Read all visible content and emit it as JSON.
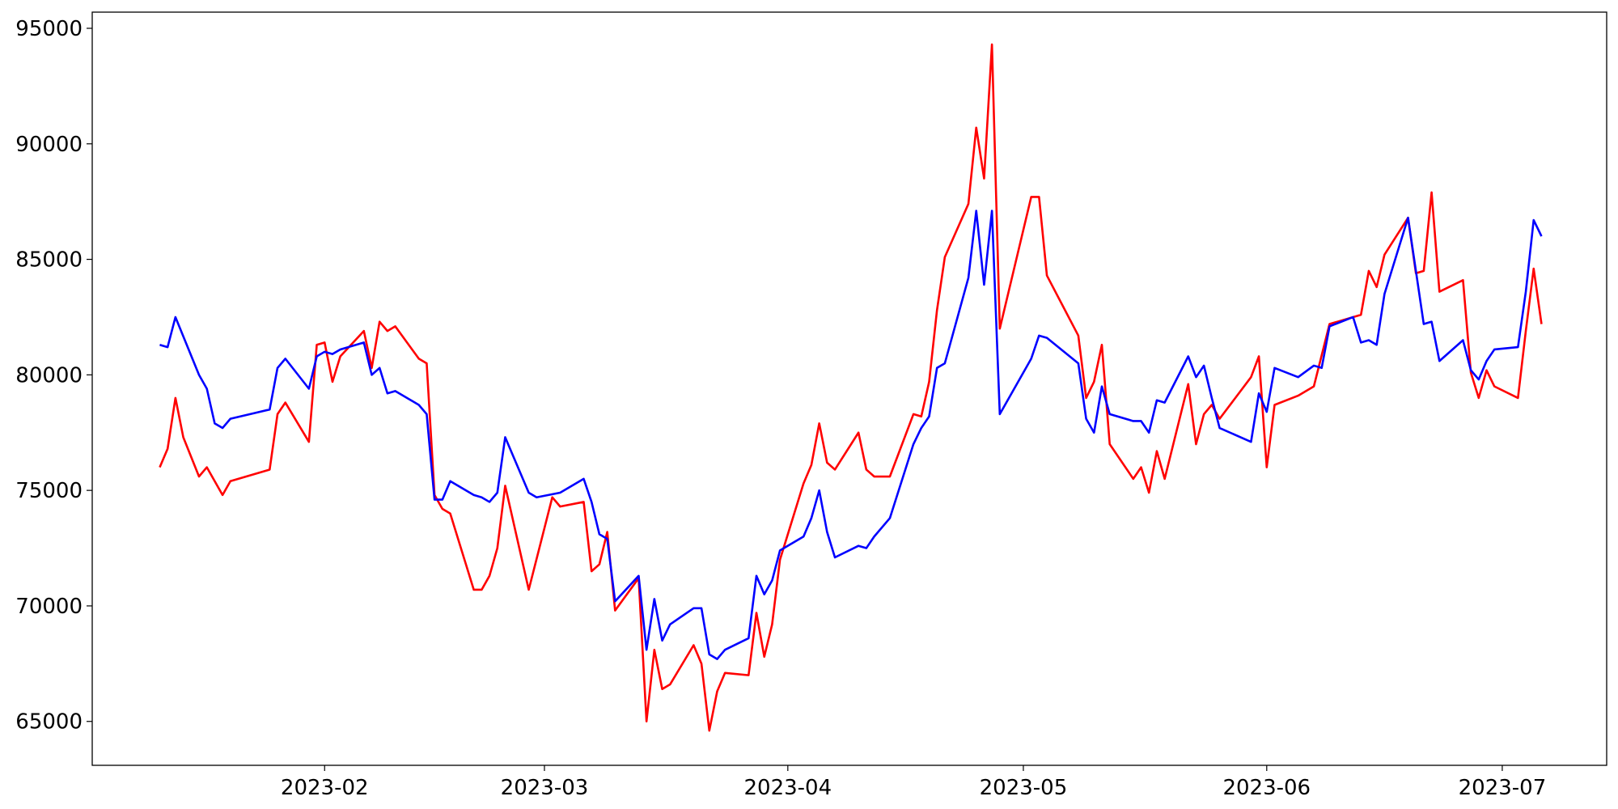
{
  "chart_data": {
    "type": "line",
    "xlim": [
      1.4,
      194.3
    ],
    "xticks": [
      {
        "value": 31,
        "label": "2023-02"
      },
      {
        "value": 59,
        "label": "2023-03"
      },
      {
        "value": 90,
        "label": "2023-04"
      },
      {
        "value": 120,
        "label": "2023-05"
      },
      {
        "value": 151,
        "label": "2023-06"
      },
      {
        "value": 181,
        "label": "2023-07"
      }
    ],
    "ylim": [
      63100,
      95700
    ],
    "yticks": [
      65000,
      70000,
      75000,
      80000,
      85000,
      90000,
      95000
    ],
    "grid": false,
    "series": [
      {
        "color": "#ff0000",
        "x": [
          10,
          11,
          12,
          13,
          15,
          16,
          17,
          18,
          19,
          24,
          25,
          26,
          29,
          30,
          31,
          32,
          33,
          36,
          37,
          38,
          39,
          40,
          43,
          44,
          45,
          46,
          47,
          50,
          51,
          52,
          53,
          54,
          57,
          60,
          61,
          64,
          65,
          66,
          67,
          68,
          71,
          72,
          73,
          74,
          75,
          78,
          79,
          80,
          81,
          82,
          85,
          86,
          87,
          88,
          89,
          92,
          93,
          94,
          95,
          96,
          99,
          100,
          101,
          102,
          103,
          106,
          107,
          108,
          109,
          110,
          113,
          114,
          115,
          116,
          117,
          121,
          122,
          123,
          127,
          128,
          129,
          130,
          131,
          134,
          135,
          136,
          137,
          138,
          141,
          142,
          143,
          144,
          145,
          149,
          150,
          151,
          152,
          155,
          157,
          159,
          163,
          164,
          165,
          166,
          169,
          170,
          171,
          172,
          173,
          176,
          177,
          178,
          179,
          180,
          183,
          184,
          185,
          186
        ],
        "values": [
          76000,
          76800,
          79000,
          77300,
          75600,
          76000,
          75400,
          74800,
          75400,
          75900,
          78300,
          78800,
          77100,
          81300,
          81400,
          79700,
          80800,
          81900,
          80300,
          82300,
          81900,
          82100,
          80700,
          80500,
          74800,
          74200,
          74000,
          70700,
          70700,
          71300,
          72500,
          75200,
          70700,
          74700,
          74300,
          74500,
          71500,
          71800,
          73200,
          69800,
          71200,
          65000,
          68100,
          66400,
          66600,
          68300,
          67500,
          64600,
          66300,
          67100,
          67000,
          69700,
          67800,
          69200,
          72000,
          75300,
          76100,
          77900,
          76200,
          75900,
          77500,
          75900,
          75600,
          75600,
          75600,
          78300,
          78200,
          79700,
          82800,
          85100,
          87400,
          90700,
          88500,
          94300,
          82000,
          87700,
          87700,
          84300,
          81700,
          79000,
          79700,
          81300,
          77000,
          75500,
          76000,
          74900,
          76700,
          75500,
          79600,
          77000,
          78300,
          78700,
          78100,
          79900,
          80800,
          76000,
          78700,
          79100,
          79500,
          82200,
          82600,
          84500,
          83800,
          85200,
          86800,
          84400,
          84500,
          87900,
          83600,
          84100,
          80100,
          79000,
          80200,
          79500,
          79000,
          81900,
          84600,
          82200
        ]
      },
      {
        "color": "#0000ff",
        "x": [
          10,
          11,
          12,
          15,
          16,
          17,
          18,
          19,
          24,
          25,
          26,
          29,
          30,
          31,
          32,
          33,
          36,
          37,
          38,
          39,
          40,
          43,
          44,
          45,
          46,
          47,
          50,
          51,
          52,
          53,
          54,
          57,
          58,
          61,
          64,
          65,
          66,
          67,
          68,
          71,
          72,
          73,
          74,
          75,
          78,
          79,
          80,
          81,
          82,
          85,
          86,
          87,
          88,
          89,
          92,
          93,
          94,
          95,
          96,
          99,
          100,
          101,
          103,
          106,
          107,
          108,
          109,
          110,
          113,
          114,
          115,
          116,
          117,
          121,
          122,
          123,
          127,
          128,
          129,
          130,
          131,
          134,
          135,
          136,
          137,
          138,
          141,
          142,
          143,
          144,
          145,
          149,
          150,
          151,
          152,
          155,
          157,
          158,
          159,
          162,
          163,
          164,
          165,
          166,
          169,
          171,
          172,
          173,
          176,
          177,
          178,
          179,
          180,
          183,
          184,
          185,
          186
        ],
        "values": [
          81300,
          81200,
          82500,
          80000,
          79400,
          77900,
          77700,
          78100,
          78500,
          80300,
          80700,
          79400,
          80800,
          81000,
          80900,
          81100,
          81400,
          80000,
          80300,
          79200,
          79300,
          78700,
          78300,
          74600,
          74600,
          75400,
          74800,
          74700,
          74500,
          74900,
          77300,
          74900,
          74700,
          74900,
          75500,
          74500,
          73100,
          72900,
          70200,
          71300,
          68100,
          70300,
          68500,
          69200,
          69900,
          69900,
          67900,
          67700,
          68100,
          68600,
          71300,
          70500,
          71100,
          72400,
          73000,
          73800,
          75000,
          73200,
          72100,
          72600,
          72500,
          73000,
          73800,
          77000,
          77700,
          78200,
          80300,
          80500,
          84200,
          87100,
          83900,
          87100,
          78300,
          80700,
          81700,
          81600,
          80500,
          78100,
          77500,
          79500,
          78300,
          78000,
          78000,
          77500,
          78900,
          78800,
          80800,
          79900,
          80400,
          79000,
          77700,
          77100,
          79200,
          78400,
          80300,
          79900,
          80400,
          80300,
          82100,
          82500,
          81400,
          81500,
          81300,
          83500,
          86800,
          82200,
          82300,
          80600,
          81500,
          80200,
          79800,
          80600,
          81100,
          81200,
          83600,
          86700,
          86000
        ]
      }
    ]
  }
}
